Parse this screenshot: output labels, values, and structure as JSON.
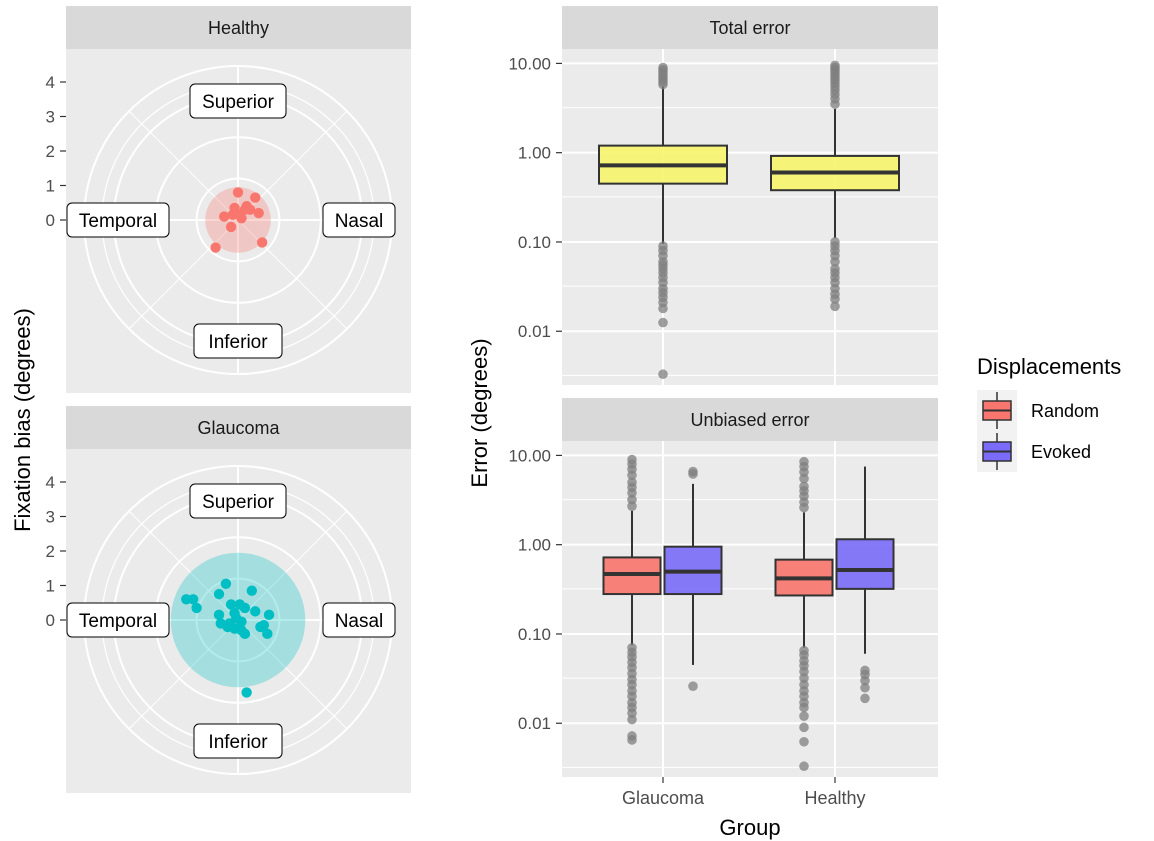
{
  "colors": {
    "panel_bg": "#EBEBEB",
    "strip_bg": "#D9D9D9",
    "grid": "#FFFFFF",
    "axis_text": "#4D4D4D",
    "healthy_points": "#F8766D",
    "glaucoma_points": "#00BFC4",
    "total_box": "#F6F46B",
    "random_box": "#F8766D",
    "evoked_box": "#7A6CF8",
    "outlier": "#7F7F7F"
  },
  "left": {
    "ylabel": "Fixation bias (degrees)",
    "radial_ticks": [
      "4",
      "3",
      "2",
      "1",
      "0"
    ],
    "direction_labels": {
      "superior": "Superior",
      "inferior": "Inferior",
      "temporal": "Temporal",
      "nasal": "Nasal"
    },
    "panels": [
      {
        "strip": "Healthy",
        "group": "healthy",
        "spread_radius": 0.95
      },
      {
        "strip": "Glaucoma",
        "group": "glaucoma",
        "spread_radius": 1.95
      }
    ]
  },
  "right": {
    "ylabel": "Error (degrees)",
    "xlabel": "Group",
    "y_ticks": [
      "10.00",
      "1.00",
      "0.10",
      "0.01"
    ],
    "x_ticks": [
      "Glaucoma",
      "Healthy"
    ],
    "panels": [
      {
        "strip": "Total error"
      },
      {
        "strip": "Unbiased error"
      }
    ]
  },
  "legend": {
    "title": "Displacements",
    "items": [
      {
        "label": "Random",
        "color": "#F8766D"
      },
      {
        "label": "Evoked",
        "color": "#7A6CF8"
      }
    ]
  },
  "chart_data": [
    {
      "type": "scatter",
      "title": "Healthy",
      "coords": "polar (x = temporal(-)/nasal(+), y = inferior(-)/superior(+), degrees)",
      "ylabel": "Fixation bias (degrees)",
      "radial_ticks": [
        0,
        1,
        2,
        3,
        4
      ],
      "x": [
        0.0,
        0.5,
        -0.1,
        0.25,
        0.6,
        -0.15,
        -0.4,
        0.1,
        0.2,
        -0.2,
        0.7,
        -0.65,
        0.35,
        0.05
      ],
      "y": [
        0.8,
        0.65,
        0.35,
        0.4,
        0.2,
        0.15,
        0.1,
        0.05,
        0.3,
        -0.2,
        -0.65,
        -0.8,
        0.3,
        0.15
      ],
      "spread_radius": 0.95,
      "color": "#F8766D"
    },
    {
      "type": "scatter",
      "title": "Glaucoma",
      "coords": "polar (x = temporal(-)/nasal(+), y = inferior(-)/superior(+), degrees)",
      "ylabel": "Fixation bias (degrees)",
      "radial_ticks": [
        0,
        1,
        2,
        3,
        4
      ],
      "x": [
        -0.35,
        -0.55,
        -1.5,
        -1.3,
        -1.2,
        -0.2,
        0.05,
        0.2,
        -0.1,
        0.5,
        -0.05,
        0.4,
        0.9,
        -0.55,
        -0.5,
        -0.3,
        0.75,
        0.65,
        -0.1,
        0.1,
        0.85,
        0.2,
        -0.25,
        0.1,
        0.25
      ],
      "y": [
        1.05,
        0.75,
        0.6,
        0.6,
        0.35,
        0.45,
        0.45,
        0.35,
        0.2,
        0.25,
        0.05,
        0.85,
        0.15,
        0.15,
        -0.1,
        -0.2,
        -0.15,
        -0.2,
        -0.25,
        -0.3,
        -0.4,
        -0.4,
        -0.1,
        -0.05,
        -2.1
      ],
      "spread_radius": 1.95,
      "color": "#00BFC4"
    },
    {
      "type": "box",
      "title": "Total error",
      "ylabel": "Error (degrees)",
      "yscale": "log10",
      "ylim": [
        0.0025,
        14.5
      ],
      "y_ticks": [
        0.01,
        0.1,
        1,
        10
      ],
      "categories": [
        "Glaucoma",
        "Healthy"
      ],
      "series": [
        {
          "color": "#F6F46B",
          "boxes": [
            {
              "q1": 0.45,
              "median": 0.72,
              "q3": 1.2,
              "whisker_low": 0.095,
              "whisker_high": 5.5,
              "outliers": [
                9.0,
                8.5,
                8.0,
                7.5,
                7.0,
                6.6,
                6.2,
                5.8,
                0.09,
                0.08,
                0.07,
                0.06,
                0.055,
                0.05,
                0.045,
                0.04,
                0.035,
                0.03,
                0.027,
                0.024,
                0.021,
                0.018,
                0.0125,
                0.0033
              ]
            },
            {
              "q1": 0.38,
              "median": 0.6,
              "q3": 0.92,
              "whisker_low": 0.11,
              "whisker_high": 3.1,
              "outliers": [
                9.5,
                9.0,
                8.5,
                8.0,
                7.5,
                7.0,
                6.5,
                6.0,
                5.5,
                5.0,
                4.5,
                4.0,
                3.5,
                0.1,
                0.09,
                0.08,
                0.07,
                0.06,
                0.05,
                0.045,
                0.04,
                0.035,
                0.03,
                0.026,
                0.023,
                0.019
              ]
            }
          ]
        }
      ]
    },
    {
      "type": "box",
      "title": "Unbiased error",
      "ylabel": "Error (degrees)",
      "xlabel": "Group",
      "yscale": "log10",
      "ylim": [
        0.0025,
        14.5
      ],
      "y_ticks": [
        0.01,
        0.1,
        1,
        10
      ],
      "categories": [
        "Glaucoma",
        "Healthy"
      ],
      "series": [
        {
          "name": "Random",
          "color": "#F8766D",
          "boxes": [
            {
              "q1": 0.28,
              "median": 0.47,
              "q3": 0.72,
              "whisker_low": 0.075,
              "whisker_high": 2.4,
              "outliers": [
                9.0,
                8.0,
                7.0,
                6.0,
                5.0,
                4.4,
                3.8,
                3.2,
                2.7,
                0.07,
                0.062,
                0.055,
                0.048,
                0.042,
                0.036,
                0.031,
                0.027,
                0.023,
                0.02,
                0.017,
                0.015,
                0.013,
                0.011,
                0.0072,
                0.0065
              ]
            },
            {
              "q1": 0.27,
              "median": 0.42,
              "q3": 0.68,
              "whisker_low": 0.07,
              "whisker_high": 2.3,
              "outliers": [
                8.5,
                7.5,
                6.5,
                5.5,
                4.5,
                4.0,
                3.5,
                3.0,
                2.6,
                0.065,
                0.058,
                0.05,
                0.044,
                0.038,
                0.032,
                0.027,
                0.023,
                0.02,
                0.017,
                0.015,
                0.012,
                0.009,
                0.0062,
                0.0033
              ]
            }
          ]
        },
        {
          "name": "Evoked",
          "color": "#7A6CF8",
          "boxes": [
            {
              "q1": 0.28,
              "median": 0.5,
              "q3": 0.95,
              "whisker_low": 0.045,
              "whisker_high": 4.8,
              "outliers": [
                6.6,
                6.2,
                0.026
              ]
            },
            {
              "q1": 0.32,
              "median": 0.52,
              "q3": 1.15,
              "whisker_low": 0.06,
              "whisker_high": 7.5,
              "outliers": [
                0.039,
                0.035,
                0.03,
                0.025,
                0.019
              ]
            }
          ]
        }
      ]
    }
  ]
}
